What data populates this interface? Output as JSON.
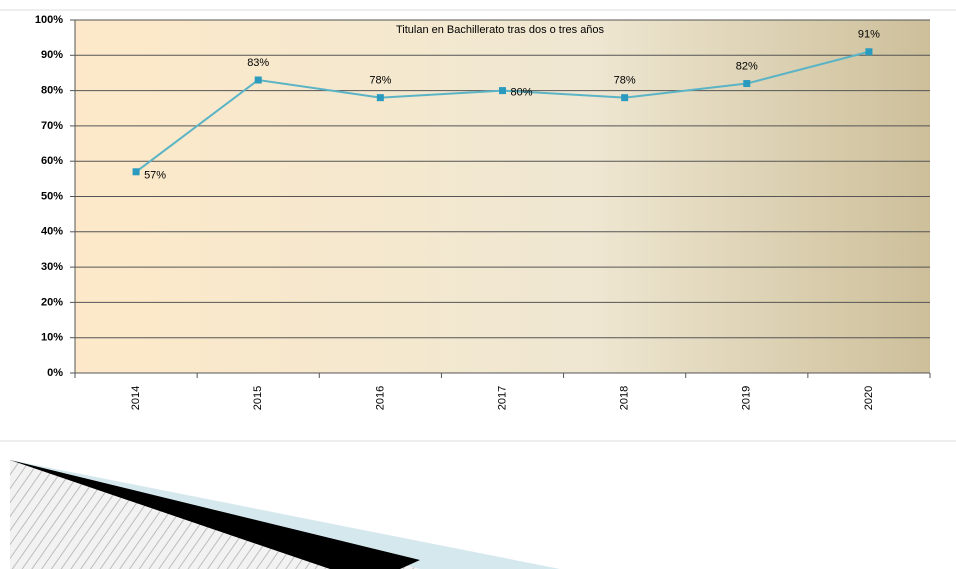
{
  "chart_data": {
    "type": "line",
    "title": "Titulan en Bachillerato tras dos o tres años",
    "categories": [
      "2014",
      "2015",
      "2016",
      "2017",
      "2018",
      "2019",
      "2020"
    ],
    "values": [
      57,
      83,
      78,
      80,
      78,
      82,
      91
    ],
    "value_labels": [
      "57%",
      "83%",
      "78%",
      "80%",
      "78%",
      "82%",
      "91%"
    ],
    "color": "#5ab4c6",
    "marker_color": "#2a9bbf",
    "ylim": [
      0,
      100
    ],
    "yticks": [
      {
        "value": 0,
        "label": "0%"
      },
      {
        "value": 10,
        "label": "10%"
      },
      {
        "value": 20,
        "label": "20%"
      },
      {
        "value": 30,
        "label": "30%"
      },
      {
        "value": 40,
        "label": "40%"
      },
      {
        "value": 50,
        "label": "50%"
      },
      {
        "value": 60,
        "label": "60%"
      },
      {
        "value": 70,
        "label": "70%"
      },
      {
        "value": 80,
        "label": "80%"
      },
      {
        "value": 90,
        "label": "90%"
      },
      {
        "value": 100,
        "label": "100%"
      }
    ],
    "grid": true
  }
}
